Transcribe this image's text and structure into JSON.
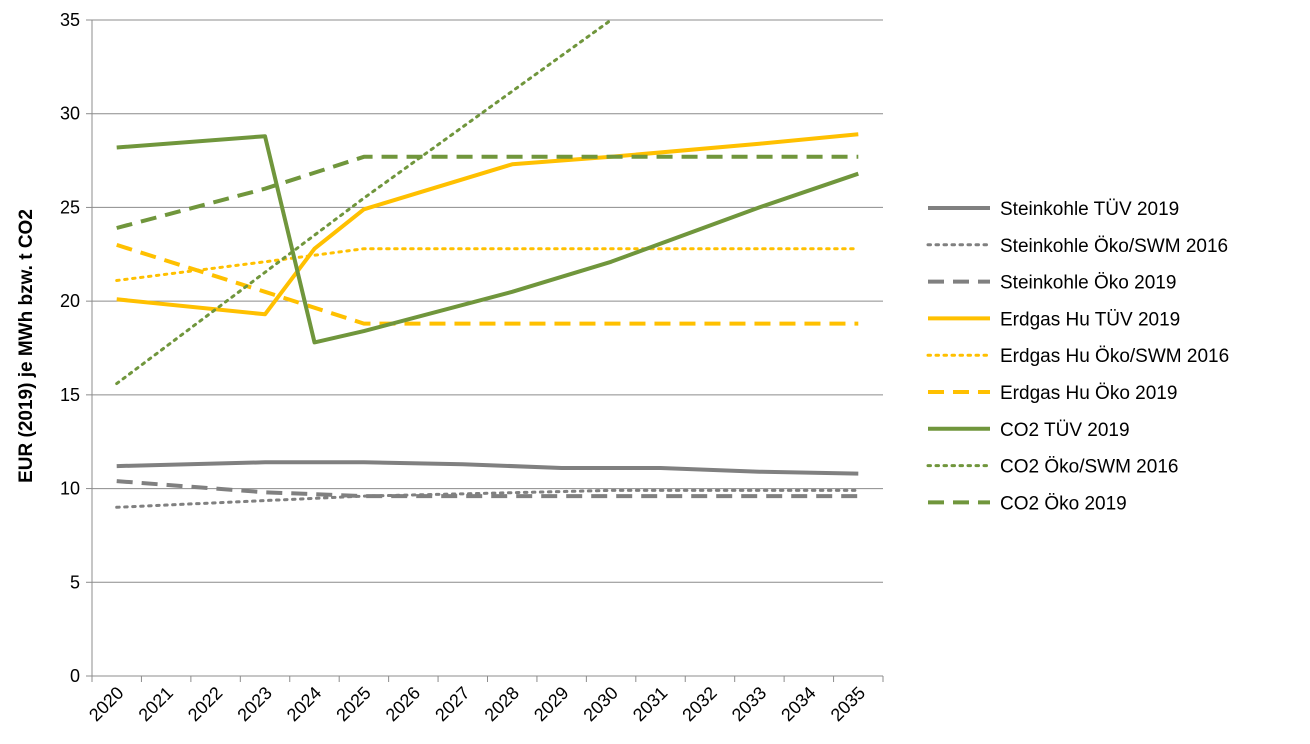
{
  "chart_data": {
    "type": "line",
    "title": "",
    "xlabel": "",
    "ylabel": "EUR (2019) je MWh bzw. t CO2",
    "ylim": [
      0,
      35
    ],
    "yticks": [
      0,
      5,
      10,
      15,
      20,
      25,
      30,
      35
    ],
    "categories": [
      "2020",
      "2021",
      "2022",
      "2023",
      "2024",
      "2025",
      "2026",
      "2027",
      "2028",
      "2029",
      "2030",
      "2031",
      "2032",
      "2033",
      "2034",
      "2035"
    ],
    "grid": "horizontal",
    "legend_position": "right",
    "series": [
      {
        "name": "Steinkohle TÜV 2019",
        "color": "#808080",
        "style": "solid",
        "points": [
          [
            2020,
            11.2
          ],
          [
            2023,
            11.4
          ],
          [
            2025,
            11.4
          ],
          [
            2027,
            11.3
          ],
          [
            2029,
            11.1
          ],
          [
            2031,
            11.1
          ],
          [
            2033,
            10.9
          ],
          [
            2035,
            10.8
          ]
        ]
      },
      {
        "name": "Steinkohle Öko/SWM 2016",
        "color": "#808080",
        "style": "dotted",
        "points": [
          [
            2020,
            9.0
          ],
          [
            2025,
            9.6
          ],
          [
            2030,
            9.9
          ],
          [
            2035,
            9.9
          ]
        ]
      },
      {
        "name": "Steinkohle Öko 2019",
        "color": "#808080",
        "style": "dashed",
        "points": [
          [
            2020,
            10.4
          ],
          [
            2023,
            9.8
          ],
          [
            2025,
            9.6
          ],
          [
            2035,
            9.6
          ]
        ]
      },
      {
        "name": "Erdgas Hu TÜV 2019",
        "color": "#FFC000",
        "style": "solid",
        "points": [
          [
            2020,
            20.1
          ],
          [
            2023,
            19.3
          ],
          [
            2024,
            22.8
          ],
          [
            2025,
            24.9
          ],
          [
            2028,
            27.3
          ],
          [
            2030,
            27.7
          ],
          [
            2033,
            28.4
          ],
          [
            2035,
            28.9
          ]
        ]
      },
      {
        "name": "Erdgas Hu Öko/SWM 2016",
        "color": "#FFC000",
        "style": "dotted",
        "points": [
          [
            2020,
            21.1
          ],
          [
            2023,
            22.1
          ],
          [
            2025,
            22.8
          ],
          [
            2030,
            22.8
          ],
          [
            2035,
            22.8
          ]
        ]
      },
      {
        "name": "Erdgas Hu Öko 2019",
        "color": "#FFC000",
        "style": "dashed",
        "points": [
          [
            2020,
            23.0
          ],
          [
            2023,
            20.5
          ],
          [
            2025,
            18.8
          ],
          [
            2035,
            18.8
          ]
        ]
      },
      {
        "name": "CO2 TÜV 2019",
        "color": "#70963C",
        "style": "solid",
        "points": [
          [
            2020,
            28.2
          ],
          [
            2023,
            28.8
          ],
          [
            2024,
            17.8
          ],
          [
            2025,
            18.4
          ],
          [
            2028,
            20.5
          ],
          [
            2030,
            22.1
          ],
          [
            2033,
            25.0
          ],
          [
            2035,
            26.8
          ]
        ]
      },
      {
        "name": "CO2 Öko/SWM 2016",
        "color": "#70963C",
        "style": "dotted",
        "points": [
          [
            2020,
            15.6
          ],
          [
            2025,
            25.5
          ],
          [
            2030,
            35.0
          ]
        ]
      },
      {
        "name": "CO2 Öko 2019",
        "color": "#70963C",
        "style": "dashed",
        "points": [
          [
            2020,
            23.9
          ],
          [
            2023,
            26.0
          ],
          [
            2025,
            27.7
          ],
          [
            2035,
            27.7
          ]
        ]
      }
    ]
  }
}
